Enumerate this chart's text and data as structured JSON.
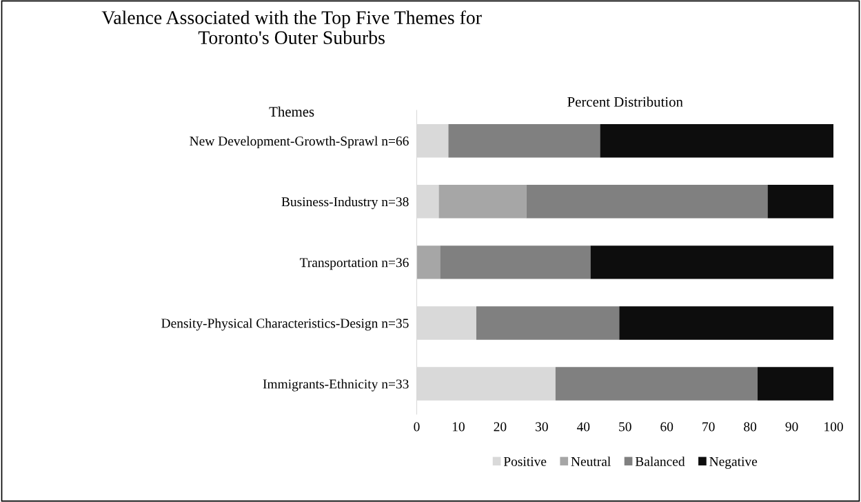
{
  "chart_data": {
    "type": "bar",
    "orientation": "horizontal",
    "stacked": true,
    "title": "Valence Associated with the Top Five Themes for\nToronto's Outer Suburbs",
    "xlabel": "Percent Distribution",
    "ylabel": "Themes",
    "categories": [
      "New Development-Growth-Sprawl n=66",
      "Business-Industry n=38",
      "Transportation n=36",
      "Density-Physical Characteristics-Design n=35",
      "Immigrants-Ethnicity n=33"
    ],
    "series": [
      {
        "name": "Positive",
        "color": "#d9d9d9",
        "values": [
          7.6,
          5.3,
          0,
          14.3,
          33.3
        ]
      },
      {
        "name": "Neutral",
        "color": "#a6a6a6",
        "values": [
          0,
          21.0,
          5.6,
          0,
          0
        ]
      },
      {
        "name": "Balanced",
        "color": "#808080",
        "values": [
          36.4,
          57.9,
          36.1,
          34.3,
          48.5
        ]
      },
      {
        "name": "Negative",
        "color": "#0d0d0d",
        "values": [
          56.0,
          15.8,
          58.3,
          51.4,
          18.2
        ]
      }
    ],
    "xlim": [
      0,
      100
    ],
    "xticks": [
      0,
      10,
      20,
      30,
      40,
      50,
      60,
      70,
      80,
      90,
      100
    ],
    "grid": false,
    "legend": "bottom"
  }
}
